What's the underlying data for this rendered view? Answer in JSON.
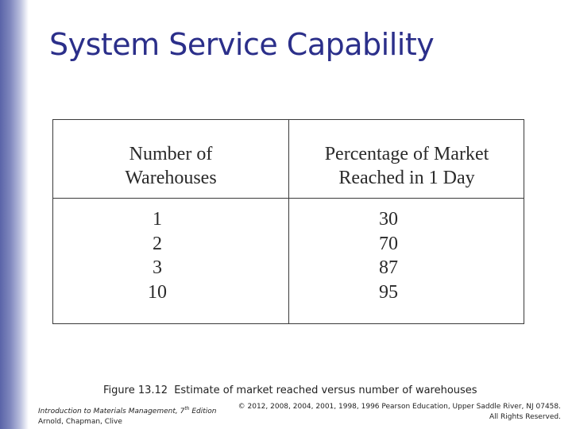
{
  "slide": {
    "title": "System Service Capability"
  },
  "table": {
    "headers": {
      "col1_line1": "Number of",
      "col1_line2": "Warehouses",
      "col2_line1": "Percentage of Market",
      "col2_line2": "Reached in 1 Day"
    },
    "rows": [
      {
        "warehouses": "1",
        "percent": "30"
      },
      {
        "warehouses": "2",
        "percent": "70"
      },
      {
        "warehouses": "3",
        "percent": "87"
      },
      {
        "warehouses": "10",
        "percent": "95"
      }
    ]
  },
  "caption": {
    "figure_number": "Figure 13.12",
    "text": "Estimate of market reached versus number of warehouses"
  },
  "footer": {
    "book_prefix": "Introduction to Materials Management, 7",
    "book_sup": "th",
    "book_suffix": " Edition",
    "authors": "Arnold, Chapman, Clive",
    "copyright_line1": "© 2012, 2008, 2004, 2001, 1998, 1996 Pearson Education, Upper Saddle River, NJ 07458.",
    "copyright_line2": "All Rights Reserved."
  }
}
